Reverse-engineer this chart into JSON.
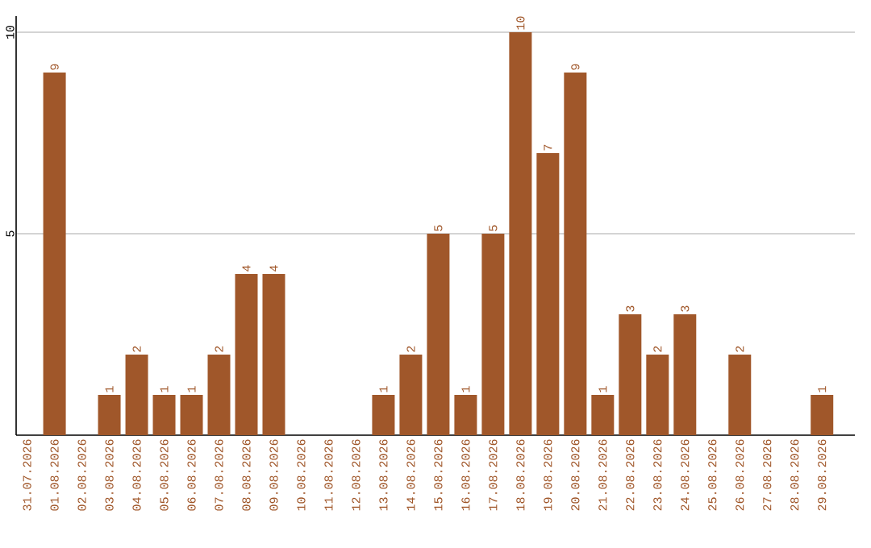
{
  "chart_data": {
    "type": "bar",
    "categories": [
      "31.07.2026",
      "01.08.2026",
      "02.08.2026",
      "03.08.2026",
      "04.08.2026",
      "05.08.2026",
      "06.08.2026",
      "07.08.2026",
      "08.08.2026",
      "09.08.2026",
      "10.08.2026",
      "11.08.2026",
      "12.08.2026",
      "13.08.2026",
      "14.08.2026",
      "15.08.2026",
      "16.08.2026",
      "17.08.2026",
      "18.08.2026",
      "19.08.2026",
      "20.08.2026",
      "21.08.2026",
      "22.08.2026",
      "23.08.2026",
      "24.08.2026",
      "25.08.2026",
      "26.08.2026",
      "27.08.2026",
      "28.08.2026",
      "29.08.2026"
    ],
    "values": [
      0,
      9,
      0,
      1,
      2,
      1,
      1,
      2,
      4,
      4,
      0,
      0,
      0,
      1,
      2,
      5,
      1,
      5,
      10,
      7,
      9,
      1,
      3,
      2,
      3,
      0,
      2,
      0,
      0,
      1
    ],
    "value_labels": [
      null,
      "9",
      null,
      "1",
      "2",
      "1",
      "1",
      "2",
      "4",
      "4",
      null,
      null,
      null,
      "1",
      "2",
      "5",
      "1",
      "5",
      "10",
      "7",
      "9",
      "1",
      "3",
      "2",
      "3",
      null,
      "2",
      null,
      null,
      "1"
    ],
    "color": "#a0572a",
    "ylim": [
      0,
      10.4
    ],
    "yticks": [
      5,
      10
    ],
    "grid": "y"
  }
}
